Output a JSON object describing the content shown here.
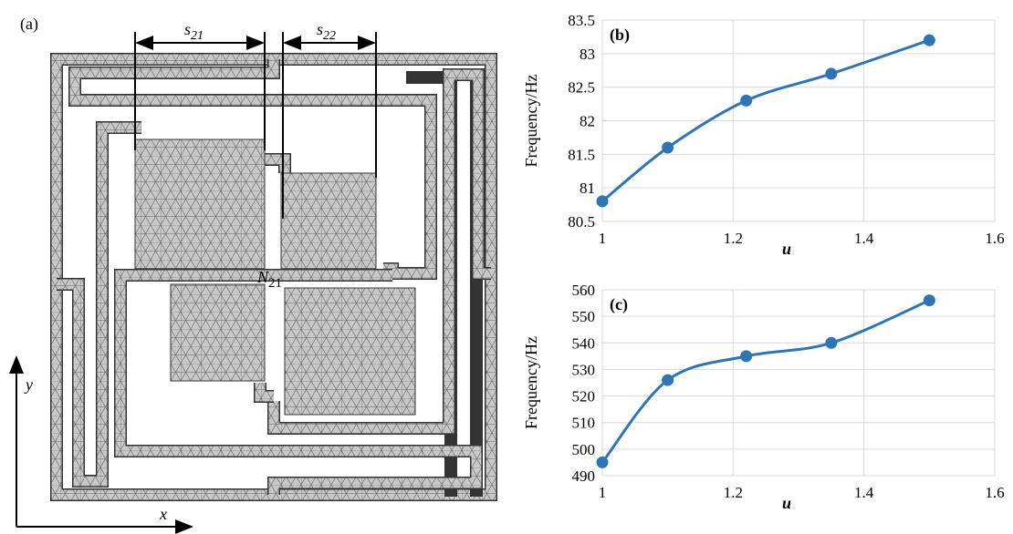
{
  "diagram": {
    "panel_label": "(a)",
    "dimensions": [
      {
        "symbol": "s",
        "subscript": "21"
      },
      {
        "symbol": "s",
        "subscript": "22"
      }
    ],
    "node": {
      "symbol": "N",
      "subscript": "21"
    },
    "axes": {
      "x": "x",
      "y": "y"
    }
  },
  "chart_data": [
    {
      "type": "line",
      "panel_label": "(b)",
      "y_label": "Frequency/Hz",
      "x_label": "u",
      "x": [
        1,
        1.1,
        1.22,
        1.35,
        1.5
      ],
      "series": [
        {
          "color": "#2e75b6",
          "values": [
            80.8,
            81.6,
            82.3,
            82.7,
            83.2
          ]
        }
      ],
      "xlim": [
        1,
        1.6
      ],
      "xticks": [
        1,
        1.2,
        1.4,
        1.6
      ],
      "ylim": [
        80.5,
        83.5
      ],
      "yticks": [
        80.5,
        81,
        81.5,
        82,
        82.5,
        83,
        83.5
      ],
      "grid": true,
      "smooth": true
    },
    {
      "type": "line",
      "panel_label": "(c)",
      "y_label": "Frequency/Hz",
      "x_label": "u",
      "x": [
        1,
        1.1,
        1.22,
        1.35,
        1.5
      ],
      "series": [
        {
          "color": "#2e75b6",
          "values": [
            495,
            526,
            535,
            540,
            556
          ]
        }
      ],
      "xlim": [
        1,
        1.6
      ],
      "xticks": [
        1,
        1.2,
        1.4,
        1.6
      ],
      "ylim": [
        490,
        560
      ],
      "yticks": [
        490,
        500,
        510,
        520,
        530,
        540,
        550,
        560
      ],
      "grid": true,
      "smooth": true
    }
  ]
}
